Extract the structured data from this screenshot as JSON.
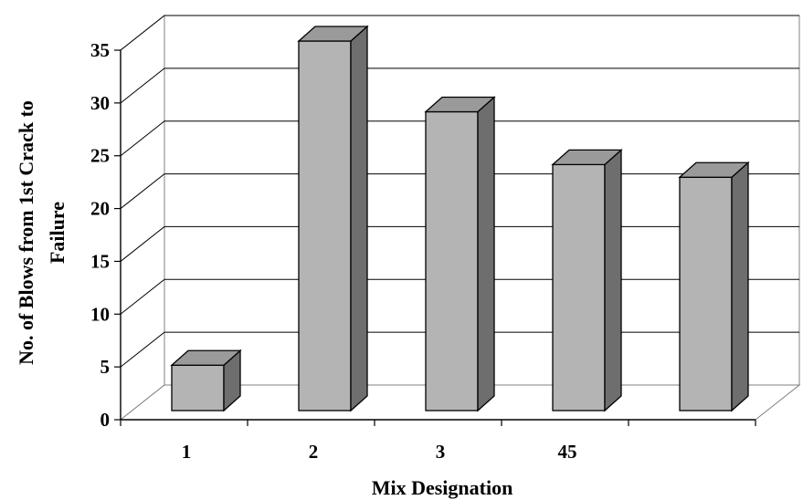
{
  "chart_data": {
    "type": "bar",
    "style": "3d-column",
    "categories": [
      "1",
      "2",
      "3",
      "45",
      ""
    ],
    "values": [
      4.3,
      35,
      28.3,
      23.3,
      22.1
    ],
    "xlabel": "Mix Designation",
    "ylabel_lines": [
      "No. of Blows from 1st Crack to",
      "Failure"
    ],
    "ylim": [
      0,
      35
    ],
    "yticks": [
      "0",
      "5",
      "10",
      "15",
      "20",
      "25",
      "30",
      "35"
    ],
    "grid": true,
    "colors": {
      "bar_front": "#b4b4b4",
      "bar_side": "#6e6e6e",
      "bar_top": "#9a9a9a",
      "outline": "#000000",
      "wall": "#ffffff"
    }
  }
}
